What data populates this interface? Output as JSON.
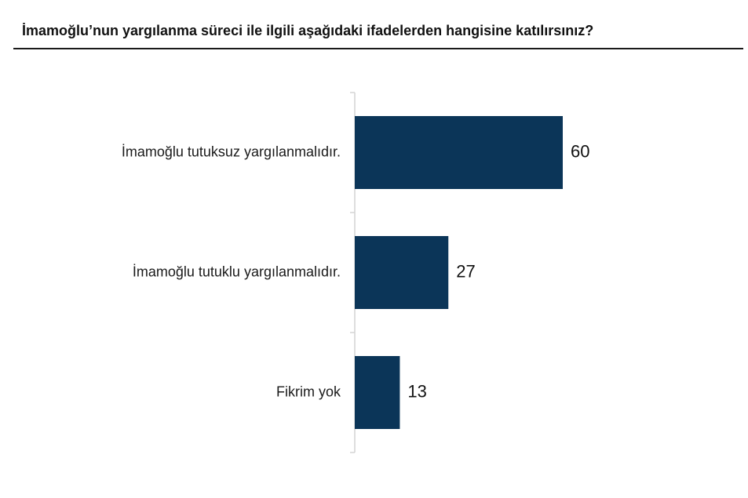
{
  "header": {
    "title": "İmamoğlu’nun yargılanma süreci ile ilgili aşağıdaki ifadelerden hangisine katılırsınız?"
  },
  "colors": {
    "bar": "#0b3558",
    "axis": "#d4d4d4",
    "rule": "#1a1a1a"
  },
  "chart_data": {
    "type": "bar",
    "orientation": "horizontal",
    "title": "İmamoğlu’nun yargılanma süreci ile ilgili aşağıdaki ifadelerden hangisine katılırsınız?",
    "categories": [
      "İmamoğlu tutuksuz yargılanmalıdır.",
      "İmamoğlu tutuklu yargılanmalıdır.",
      "Fikrim yok"
    ],
    "values": [
      60,
      27,
      13
    ],
    "data_labels": [
      "60",
      "27",
      "13"
    ],
    "xlim": [
      0,
      100
    ],
    "grid": false,
    "legend": "none"
  }
}
